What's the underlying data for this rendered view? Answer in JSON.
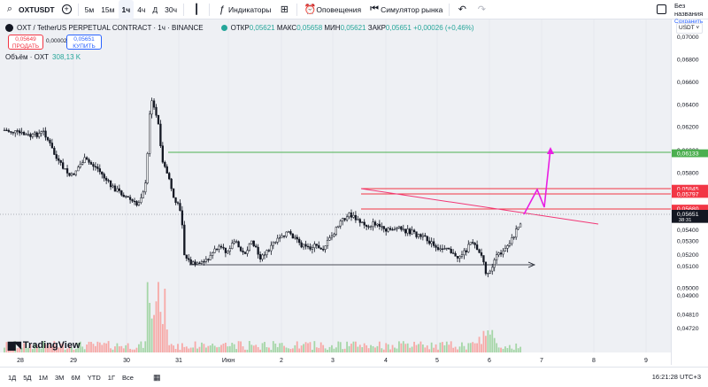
{
  "toolbar": {
    "symbol": "OXTUSDT",
    "add_symbol": "+",
    "intervals": [
      "5м",
      "15м",
      "1ч",
      "4ч",
      "Д",
      "30ч"
    ],
    "active_interval": "1ч",
    "indicators_label": "Индикаторы",
    "alerts_label": "Оповещения",
    "replay_label": "Симулятор рынка",
    "undo": "↶",
    "redo": "↷",
    "layout_name": "Без названия",
    "layout_save": "Сохранить"
  },
  "legend": {
    "title": "OXT / TetherUS PERPETUAL CONTRACT · 1ч · BINANCE",
    "ohlc": [
      {
        "label": "ОТКР",
        "value": "0,05621"
      },
      {
        "label": "МАКС",
        "value": "0,05658"
      },
      {
        "label": "МИН",
        "value": "0,05621"
      },
      {
        "label": "ЗАКР",
        "value": "0,05651"
      }
    ],
    "change": "+0,00026 (+0,46%)",
    "sell_price": "0,05649",
    "sell_label": "ПРОДАТЬ",
    "spread": "0,00002",
    "buy_price": "0,05651",
    "buy_label": "КУПИТЬ",
    "volume_label": "Объём · OXT",
    "volume_value": "308,13 K"
  },
  "currency": "USDT",
  "logo": "TradingView",
  "colors": {
    "up": "#26a69a",
    "down": "#ef5350",
    "candle": "#131722",
    "green_line": "#4caf50",
    "red_line": "#f23645",
    "arrow": "#e91ee3",
    "trend": "#f23675",
    "background": "#eef0f4"
  },
  "price_axis": {
    "ticks": [
      "0,07000",
      "0,06800",
      "0,06600",
      "0,06400",
      "0,06200",
      "0,06000",
      "0,05800",
      "0,05600",
      "0,05500",
      "0,05400",
      "0,05300",
      "0,05200",
      "0,05100",
      "0,05000",
      "0,04900",
      "0,04810",
      "0,04720"
    ],
    "markers": [
      {
        "label": "0,06133",
        "color": "#4caf50"
      },
      {
        "label": "0,05845",
        "color": "#f23645"
      },
      {
        "label": "0,05797",
        "color": "#f23645"
      },
      {
        "label": "0,05680",
        "color": "#f23645"
      },
      {
        "label": "0,05651",
        "sub": "38:31",
        "color": "#131722"
      }
    ]
  },
  "time_axis": [
    "28",
    "29",
    "30",
    "31",
    "Июн",
    "2",
    "3",
    "4",
    "5",
    "6",
    "7",
    "8",
    "9"
  ],
  "bottom": {
    "ranges": [
      "1Д",
      "5Д",
      "1М",
      "3М",
      "6М",
      "YTD",
      "1Г",
      "Все"
    ],
    "clock": "16:21:28 UTC+3"
  }
}
